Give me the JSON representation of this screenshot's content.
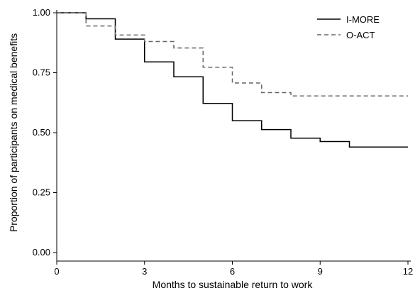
{
  "chart_data": {
    "type": "line",
    "step": true,
    "xlabel": "Months to sustainable return to work",
    "ylabel": "Proportion of participants on medical benefits",
    "xlim": [
      0,
      12
    ],
    "ylim": [
      0,
      1
    ],
    "x_ticks": [
      "0",
      "3",
      "6",
      "9",
      "12"
    ],
    "y_ticks": [
      "0.00",
      "0.25",
      "0.50",
      "0.75",
      "1.00"
    ],
    "grid": false,
    "legend_position": "top-right",
    "series": [
      {
        "name": "I-MORE",
        "style": "solid",
        "color": "#000000",
        "x": [
          0,
          1,
          2,
          3,
          4,
          5,
          6,
          7,
          8,
          9,
          10,
          12
        ],
        "y": [
          1.0,
          0.975,
          0.89,
          0.795,
          0.733,
          0.622,
          0.55,
          0.513,
          0.477,
          0.463,
          0.44,
          0.44
        ]
      },
      {
        "name": "O-ACT",
        "style": "dashed",
        "color": "#666666",
        "x": [
          0,
          1,
          2,
          3,
          4,
          5,
          6,
          7,
          8,
          12
        ],
        "y": [
          1.0,
          0.945,
          0.907,
          0.88,
          0.853,
          0.773,
          0.707,
          0.667,
          0.653,
          0.653
        ]
      }
    ]
  }
}
